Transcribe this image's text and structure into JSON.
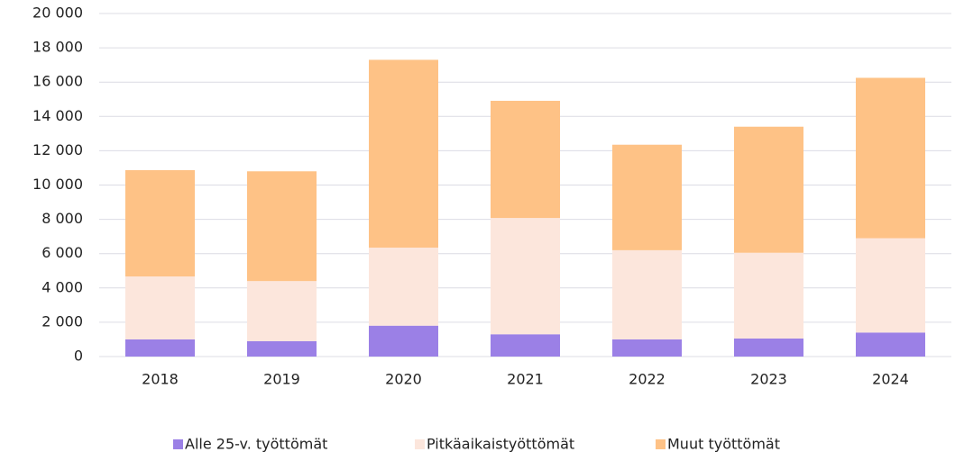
{
  "chart_data": {
    "type": "bar",
    "stacked": true,
    "categories": [
      "2018",
      "2019",
      "2020",
      "2021",
      "2022",
      "2023",
      "2024"
    ],
    "series": [
      {
        "name": "Alle 25-v. työttömät",
        "color": "#9b80e6",
        "values": [
          1000,
          900,
          1800,
          1300,
          1000,
          1050,
          1400
        ]
      },
      {
        "name": "Pitkäaikaistyöttömät",
        "color": "#fce6dc",
        "values": [
          3670,
          3500,
          4550,
          6780,
          5200,
          5000,
          5500
        ]
      },
      {
        "name": "Muut työttömät",
        "color": "#fec286",
        "values": [
          6200,
          6400,
          10950,
          6830,
          6150,
          7350,
          9350
        ]
      }
    ],
    "ylim": [
      0,
      20000
    ],
    "yticks": [
      0,
      {
        "value": 2000,
        "label": "2 000"
      },
      {
        "value": 4000,
        "label": "4 000"
      },
      {
        "value": 6000,
        "label": "6 000"
      },
      {
        "value": 8000,
        "label": "8 000"
      },
      {
        "value": 10000,
        "label": "10 000"
      },
      {
        "value": 12000,
        "label": "12 000"
      },
      {
        "value": 14000,
        "label": "14 000"
      },
      {
        "value": 16000,
        "label": "16 000"
      },
      {
        "value": 18000,
        "label": "18 000"
      },
      {
        "value": 20000,
        "label": "20 000"
      }
    ],
    "grid": true,
    "legend": "bottom"
  }
}
